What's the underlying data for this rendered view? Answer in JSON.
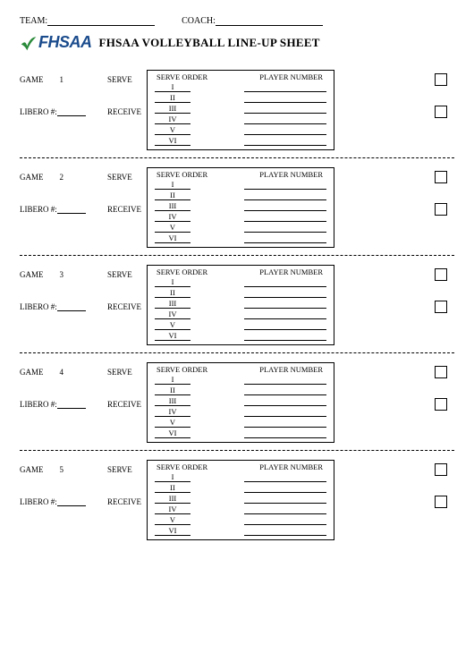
{
  "header": {
    "team_label": "TEAM:",
    "coach_label": "COACH:"
  },
  "logo": {
    "text": "FHSAA"
  },
  "title": "FHSAA VOLLEYBALL LINE-UP SHEET",
  "labels": {
    "game": "GAME",
    "serve": "SERVE",
    "libero": "LIBERO #:",
    "receive": "RECEIVE",
    "serve_order": "SERVE ORDER",
    "player_number": "PLAYER NUMBER"
  },
  "romans": [
    "I",
    "II",
    "III",
    "IV",
    "V",
    "VI"
  ],
  "games": [
    1,
    2,
    3,
    4,
    5
  ],
  "colors": {
    "logo_check": "#2a8a3a",
    "logo_text": "#1a4b8c",
    "page_bg": "#ffffff",
    "text": "#000000"
  }
}
